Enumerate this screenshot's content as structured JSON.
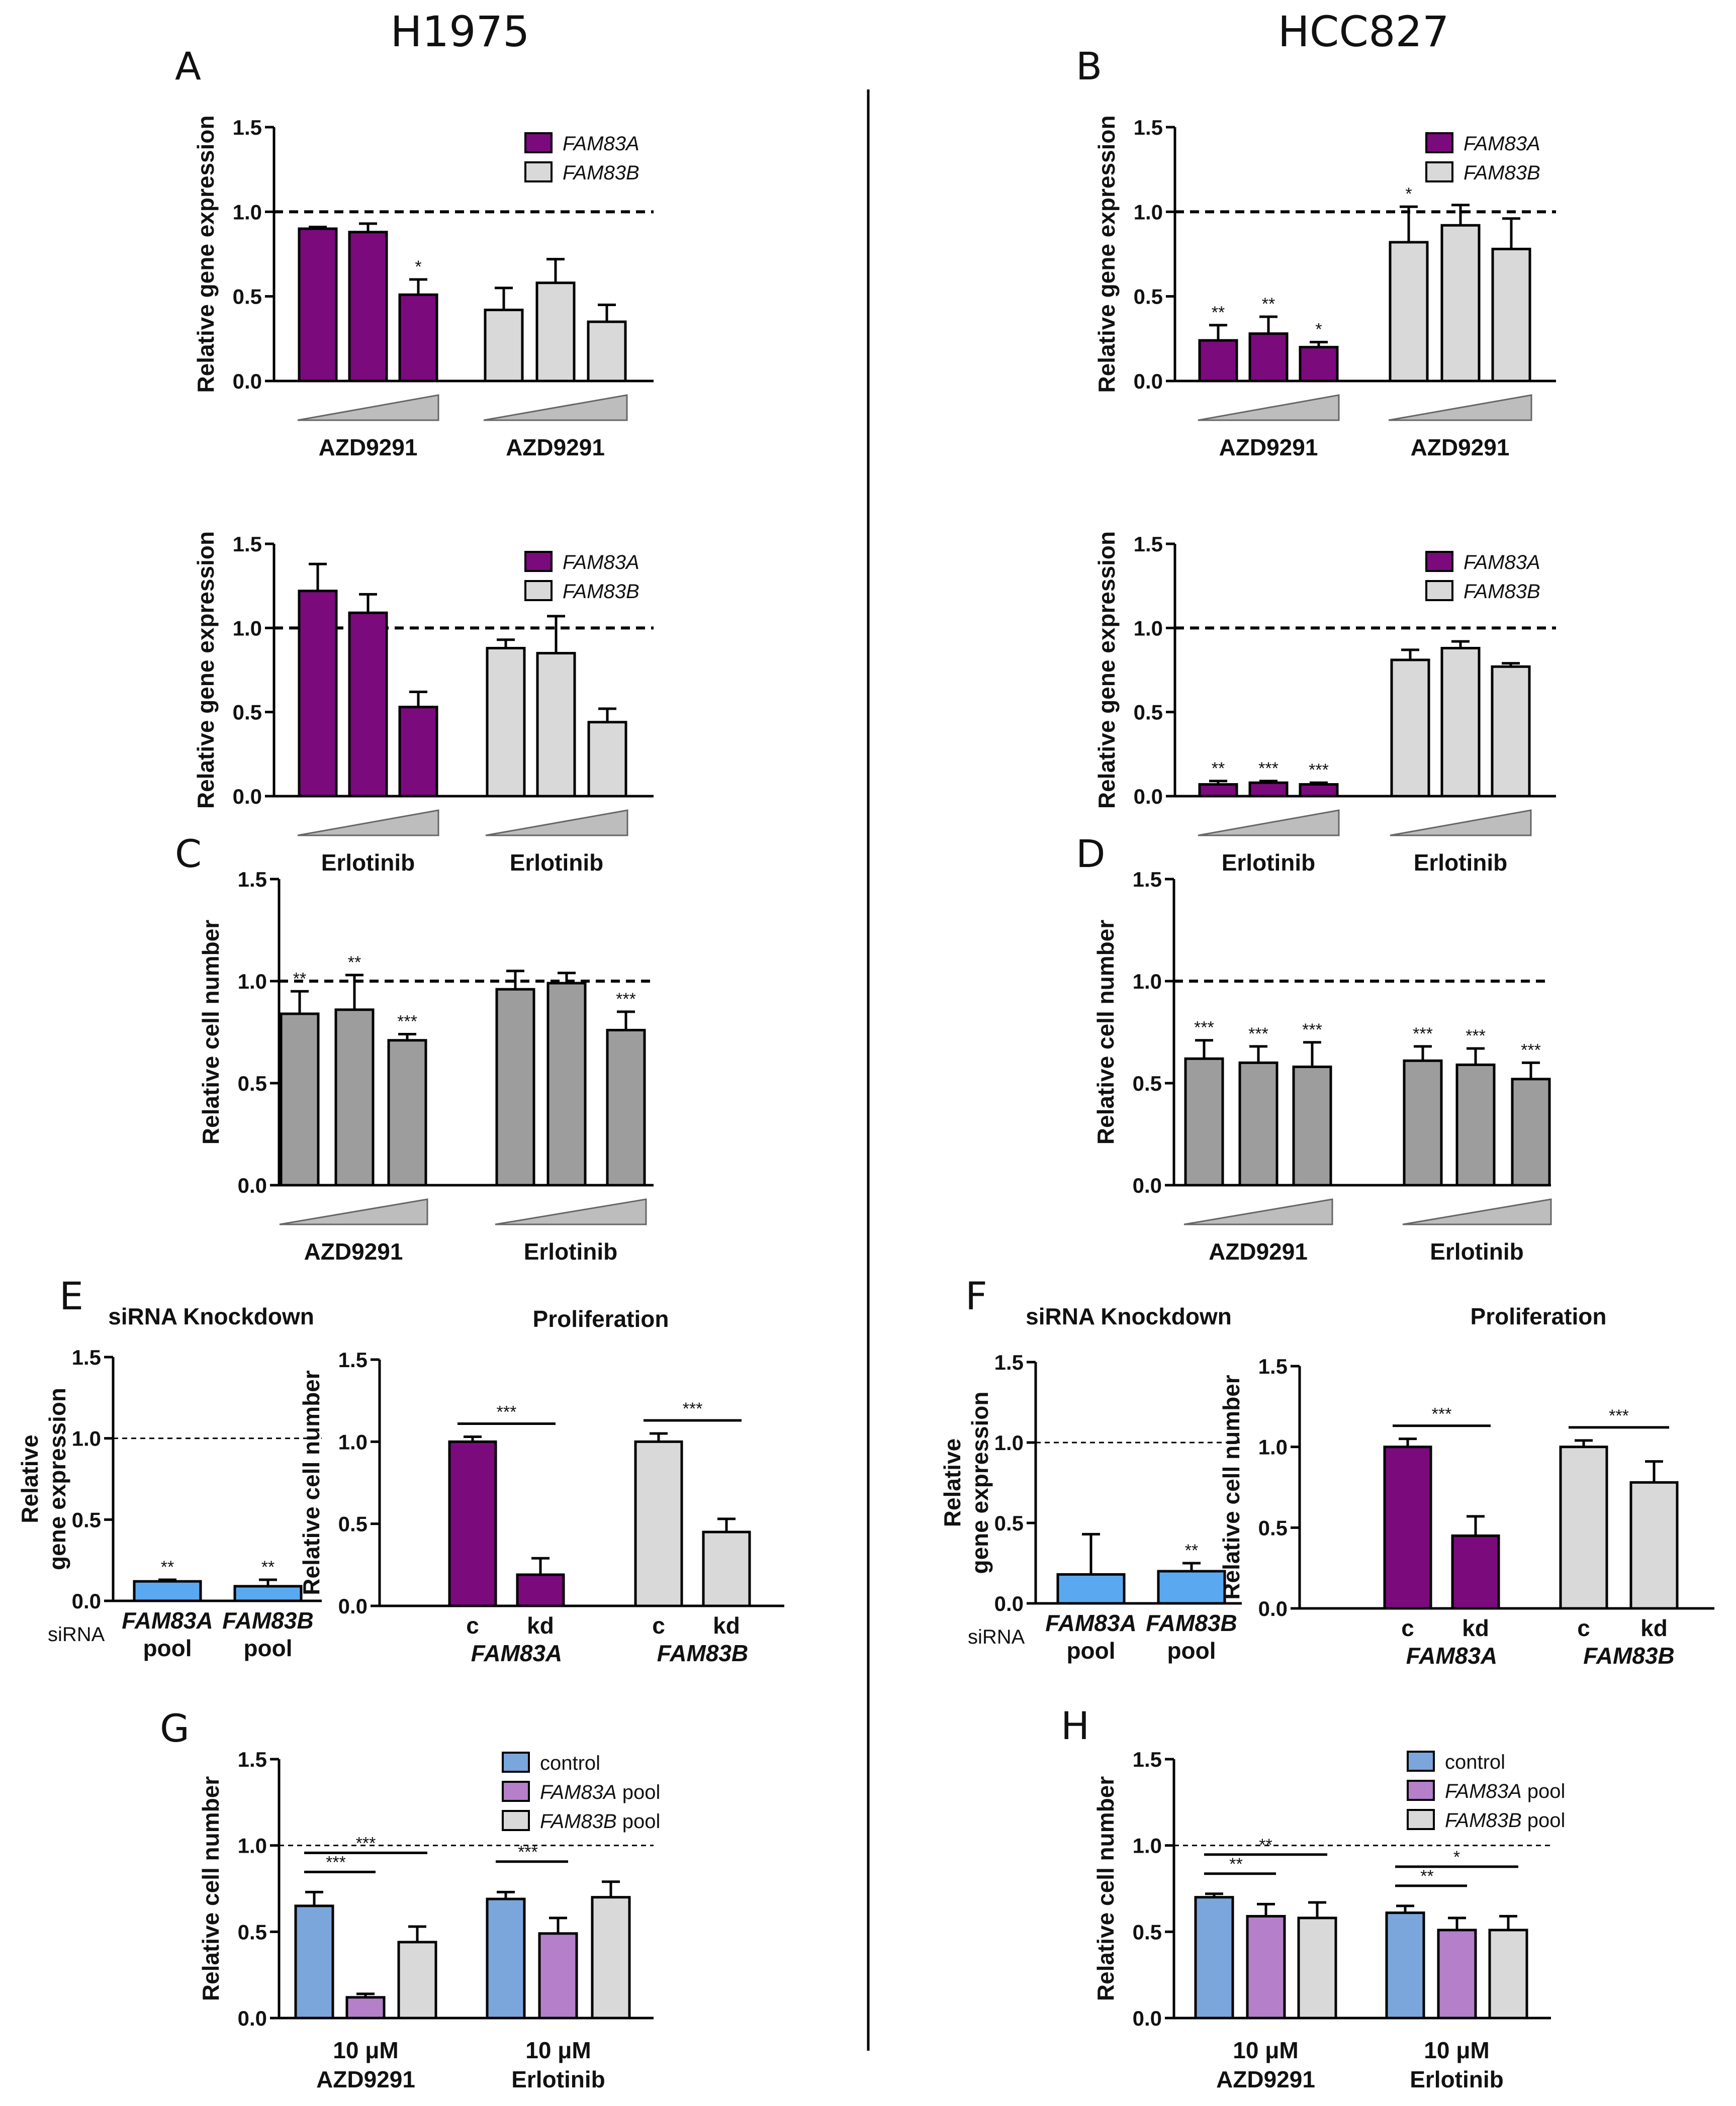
{
  "figure": {
    "col_titles": {
      "left": "H1975",
      "right": "HCC827"
    }
  },
  "chart_data": [
    {
      "id": "A-azd",
      "panel_letter": "A",
      "type": "bar",
      "ylabel": "Relative gene expression",
      "ylim": [
        0,
        1.5
      ],
      "yticks": [
        "0.0",
        "0.5",
        "1.0",
        "1.5"
      ],
      "ref_line": 1.0,
      "legend": [
        {
          "label": "FAM83A",
          "italic": true,
          "color": "#7b0a7d"
        },
        {
          "label": "FAM83B",
          "italic": true,
          "color": "#d9d9d9"
        }
      ],
      "groups": [
        {
          "label": "AZD9291",
          "color": "#7b0a7d",
          "values": [
            0.9,
            0.88,
            0.51
          ],
          "errors": [
            0.01,
            0.05,
            0.09
          ],
          "stars": [
            "",
            "",
            "*"
          ]
        },
        {
          "label": "AZD9291",
          "color": "#d9d9d9",
          "values": [
            0.42,
            0.58,
            0.35
          ],
          "errors": [
            0.13,
            0.14,
            0.1
          ],
          "stars": [
            "",
            "",
            ""
          ]
        }
      ]
    },
    {
      "id": "B-azd",
      "panel_letter": "B",
      "type": "bar",
      "ylabel": "Relative gene expression",
      "ylim": [
        0,
        1.5
      ],
      "yticks": [
        "0.0",
        "0.5",
        "1.0",
        "1.5"
      ],
      "ref_line": 1.0,
      "legend": [
        {
          "label": "FAM83A",
          "italic": true,
          "color": "#7b0a7d"
        },
        {
          "label": "FAM83B",
          "italic": true,
          "color": "#d9d9d9"
        }
      ],
      "groups": [
        {
          "label": "AZD9291",
          "color": "#7b0a7d",
          "values": [
            0.24,
            0.28,
            0.2
          ],
          "errors": [
            0.09,
            0.1,
            0.03
          ],
          "stars": [
            "**",
            "**",
            "*"
          ]
        },
        {
          "label": "AZD9291",
          "color": "#d9d9d9",
          "values": [
            0.82,
            0.92,
            0.78
          ],
          "errors": [
            0.21,
            0.12,
            0.18
          ],
          "stars": [
            "*",
            "",
            ""
          ]
        }
      ]
    },
    {
      "id": "A-erl",
      "panel_letter": "",
      "type": "bar",
      "ylabel": "Relative gene expression",
      "ylim": [
        0,
        1.5
      ],
      "yticks": [
        "0.0",
        "0.5",
        "1.0",
        "1.5"
      ],
      "ref_line": 1.0,
      "legend": [
        {
          "label": "FAM83A",
          "italic": true,
          "color": "#7b0a7d"
        },
        {
          "label": "FAM83B",
          "italic": true,
          "color": "#d9d9d9"
        }
      ],
      "groups": [
        {
          "label": "Erlotinib",
          "color": "#7b0a7d",
          "values": [
            1.22,
            1.09,
            0.53
          ],
          "errors": [
            0.16,
            0.11,
            0.09
          ],
          "stars": [
            "",
            "",
            ""
          ]
        },
        {
          "label": "Erlotinib",
          "color": "#d9d9d9",
          "values": [
            0.88,
            0.85,
            0.44
          ],
          "errors": [
            0.05,
            0.22,
            0.08
          ],
          "stars": [
            "",
            "",
            ""
          ]
        }
      ]
    },
    {
      "id": "B-erl",
      "panel_letter": "",
      "type": "bar",
      "ylabel": "Relative gene expression",
      "ylim": [
        0,
        1.5
      ],
      "yticks": [
        "0.0",
        "0.5",
        "1.0",
        "1.5"
      ],
      "ref_line": 1.0,
      "legend": [
        {
          "label": "FAM83A",
          "italic": true,
          "color": "#7b0a7d"
        },
        {
          "label": "FAM83B",
          "italic": true,
          "color": "#d9d9d9"
        }
      ],
      "groups": [
        {
          "label": "Erlotinib",
          "color": "#7b0a7d",
          "values": [
            0.07,
            0.08,
            0.07
          ],
          "errors": [
            0.02,
            0.01,
            0.01
          ],
          "stars": [
            "**",
            "***",
            "***"
          ]
        },
        {
          "label": "Erlotinib",
          "color": "#d9d9d9",
          "values": [
            0.81,
            0.88,
            0.77
          ],
          "errors": [
            0.06,
            0.04,
            0.02
          ],
          "stars": [
            "",
            "",
            ""
          ]
        }
      ]
    },
    {
      "id": "C",
      "panel_letter": "C",
      "type": "bar",
      "ylabel": "Relative cell number",
      "ylim": [
        0,
        1.5
      ],
      "yticks": [
        "0.0",
        "0.5",
        "1.0",
        "1.5"
      ],
      "ref_line": 1.0,
      "legend": [],
      "groups": [
        {
          "label": "AZD9291",
          "color": "#9d9d9d",
          "values": [
            0.84,
            0.86,
            0.71
          ],
          "errors": [
            0.11,
            0.17,
            0.03
          ],
          "stars": [
            "**",
            "**",
            "***"
          ]
        },
        {
          "label": "Erlotinib",
          "color": "#9d9d9d",
          "values": [
            0.96,
            0.99,
            0.76
          ],
          "errors": [
            0.09,
            0.05,
            0.09
          ],
          "stars": [
            "",
            "",
            "***"
          ]
        }
      ]
    },
    {
      "id": "D",
      "panel_letter": "D",
      "type": "bar",
      "ylabel": "Relative cell number",
      "ylim": [
        0,
        1.5
      ],
      "yticks": [
        "0.0",
        "0.5",
        "1.0",
        "1.5"
      ],
      "ref_line": 1.0,
      "legend": [],
      "groups": [
        {
          "label": "AZD9291",
          "color": "#9d9d9d",
          "values": [
            0.62,
            0.6,
            0.58
          ],
          "errors": [
            0.09,
            0.08,
            0.12
          ],
          "stars": [
            "***",
            "***",
            "***"
          ]
        },
        {
          "label": "Erlotinib",
          "color": "#9d9d9d",
          "values": [
            0.61,
            0.59,
            0.52
          ],
          "errors": [
            0.07,
            0.08,
            0.08
          ],
          "stars": [
            "***",
            "***",
            "***"
          ]
        }
      ]
    },
    {
      "id": "E-kd",
      "panel_letter": "E",
      "type": "bar",
      "title": "siRNA Knockdown",
      "ylabel": "Relative",
      "ylabel2": "gene expression",
      "ylim": [
        0,
        1.5
      ],
      "yticks": [
        "0.0",
        "0.5",
        "1.0",
        "1.5"
      ],
      "ref_line": 1.0,
      "prefix": "siRNA",
      "bars": [
        {
          "top": "FAM83A",
          "bottom": "pool",
          "value": 0.12,
          "error": 0.01,
          "star": "**",
          "color": "#5aa9f0"
        },
        {
          "top": "FAM83B",
          "bottom": "pool",
          "value": 0.09,
          "error": 0.04,
          "star": "**",
          "color": "#5aa9f0"
        }
      ]
    },
    {
      "id": "E-prolif",
      "panel_letter": "",
      "type": "bar",
      "title": "Proliferation",
      "ylabel": "Relative cell number",
      "ylim": [
        0,
        1.5
      ],
      "yticks": [
        "0.0",
        "0.5",
        "1.0",
        "1.5"
      ],
      "groups": [
        {
          "gene": "FAM83A",
          "color": "#7b0a7d",
          "labels": [
            "c",
            "kd"
          ],
          "values": [
            1.0,
            0.19
          ],
          "errors": [
            0.03,
            0.1
          ],
          "sig": "***"
        },
        {
          "gene": "FAM83B",
          "color": "#d9d9d9",
          "labels": [
            "c",
            "kd"
          ],
          "values": [
            1.0,
            0.45
          ],
          "errors": [
            0.05,
            0.08
          ],
          "sig": "***"
        }
      ]
    },
    {
      "id": "F-kd",
      "panel_letter": "F",
      "type": "bar",
      "title": "siRNA Knockdown",
      "ylabel": "Relative",
      "ylabel2": "gene expression",
      "ylim": [
        0,
        1.5
      ],
      "yticks": [
        "0.0",
        "0.5",
        "1.0",
        "1.5"
      ],
      "ref_line": 1.0,
      "prefix": "siRNA",
      "bars": [
        {
          "top": "FAM83A",
          "bottom": "pool",
          "value": 0.18,
          "error": 0.25,
          "star": "",
          "color": "#5aa9f0"
        },
        {
          "top": "FAM83B",
          "bottom": "pool",
          "value": 0.2,
          "error": 0.05,
          "star": "**",
          "color": "#5aa9f0"
        }
      ]
    },
    {
      "id": "F-prolif",
      "panel_letter": "",
      "type": "bar",
      "title": "Proliferation",
      "ylabel": "Relative cell number",
      "ylim": [
        0,
        1.5
      ],
      "yticks": [
        "0.0",
        "0.5",
        "1.0",
        "1.5"
      ],
      "groups": [
        {
          "gene": "FAM83A",
          "color": "#7b0a7d",
          "labels": [
            "c",
            "kd"
          ],
          "values": [
            1.0,
            0.45
          ],
          "errors": [
            0.05,
            0.12
          ],
          "sig": "***"
        },
        {
          "gene": "FAM83B",
          "color": "#d9d9d9",
          "labels": [
            "c",
            "kd"
          ],
          "values": [
            1.0,
            0.78
          ],
          "errors": [
            0.04,
            0.13
          ],
          "sig": "***"
        }
      ]
    },
    {
      "id": "G",
      "panel_letter": "G",
      "type": "bar",
      "ylabel": "Relative cell number",
      "ylim": [
        0,
        1.5
      ],
      "yticks": [
        "0.0",
        "0.5",
        "1.0",
        "1.5"
      ],
      "ref_line": 1.0,
      "legend": [
        {
          "label": "control",
          "italic": false,
          "color": "#7aa6dc"
        },
        {
          "label": "FAM83A",
          "suffix": " pool",
          "italic": true,
          "color": "#b57fc9"
        },
        {
          "label": "FAM83B",
          "suffix": " pool",
          "italic": true,
          "color": "#d9d9d9"
        }
      ],
      "groups": [
        {
          "line1": "10 μM",
          "line2": "AZD9291",
          "values": [
            0.65,
            0.12,
            0.44
          ],
          "errors": [
            0.08,
            0.02,
            0.09
          ],
          "sigs": [
            {
              "from": 0,
              "to": 1,
              "label": "***"
            },
            {
              "from": 0,
              "to": 2,
              "label": "***"
            }
          ]
        },
        {
          "line1": "10 μM",
          "line2": "Erlotinib",
          "values": [
            0.69,
            0.49,
            0.7
          ],
          "errors": [
            0.04,
            0.09,
            0.09
          ],
          "sigs": [
            {
              "from": 0,
              "to": 1,
              "label": "***"
            }
          ]
        }
      ]
    },
    {
      "id": "H",
      "panel_letter": "H",
      "type": "bar",
      "ylabel": "Relative cell number",
      "ylim": [
        0,
        1.5
      ],
      "yticks": [
        "0.0",
        "0.5",
        "1.0",
        "1.5"
      ],
      "ref_line": 1.0,
      "legend": [
        {
          "label": "control",
          "italic": false,
          "color": "#7aa6dc"
        },
        {
          "label": "FAM83A",
          "suffix": " pool",
          "italic": true,
          "color": "#b57fc9"
        },
        {
          "label": "FAM83B",
          "suffix": " pool",
          "italic": true,
          "color": "#d9d9d9"
        }
      ],
      "groups": [
        {
          "line1": "10 μM",
          "line2": "AZD9291",
          "values": [
            0.7,
            0.59,
            0.58
          ],
          "errors": [
            0.02,
            0.07,
            0.09
          ],
          "sigs": [
            {
              "from": 0,
              "to": 1,
              "label": "**"
            },
            {
              "from": 0,
              "to": 2,
              "label": "**"
            }
          ]
        },
        {
          "line1": "10 μM",
          "line2": "Erlotinib",
          "values": [
            0.61,
            0.51,
            0.51
          ],
          "errors": [
            0.04,
            0.07,
            0.08
          ],
          "sigs": [
            {
              "from": 0,
              "to": 1,
              "label": "**"
            },
            {
              "from": 0,
              "to": 2,
              "label": "*"
            }
          ]
        }
      ]
    }
  ]
}
